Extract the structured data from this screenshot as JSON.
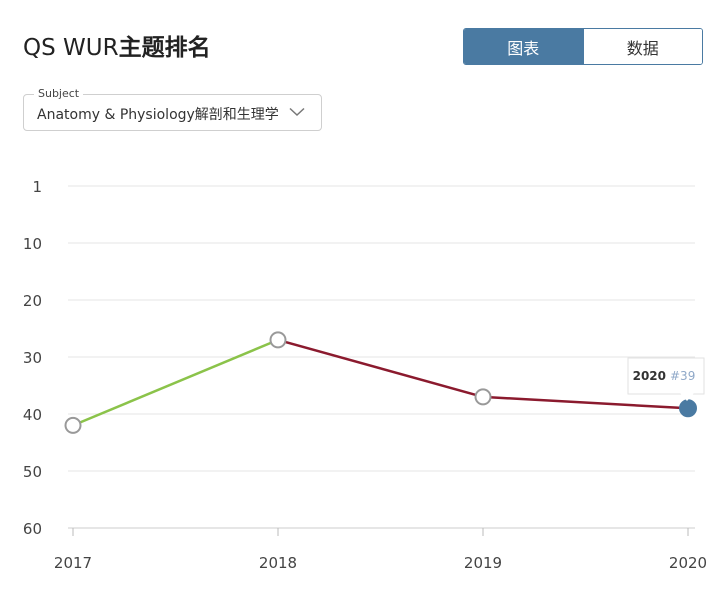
{
  "header": {
    "title_prefix": "QS WUR",
    "title_suffix": "主题排名"
  },
  "view_toggle": {
    "chart_label": "图表",
    "data_label": "数据",
    "active": "chart"
  },
  "subject_select": {
    "legend": "Subject",
    "value": "Anatomy & Physiology解剖和生理学"
  },
  "tooltip": {
    "year": "2020",
    "rank": "#39"
  },
  "colors": {
    "accent": "#4a7aa2",
    "rising_segment": "#8bc34a",
    "falling_segment": "#8b1a2e",
    "point_outline": "#999999",
    "highlight_point": "#4a7aa2",
    "tooltip_rank": "#8fa8c8"
  },
  "chart_data": {
    "type": "line",
    "x": [
      "2017",
      "2018",
      "2019",
      "2020"
    ],
    "values": [
      42,
      27,
      37,
      39
    ],
    "y_ticks": [
      1,
      10,
      20,
      30,
      40,
      50,
      60
    ],
    "ylim": [
      1,
      60
    ],
    "y_inverted": true,
    "grid": true,
    "highlight_index": 3
  }
}
